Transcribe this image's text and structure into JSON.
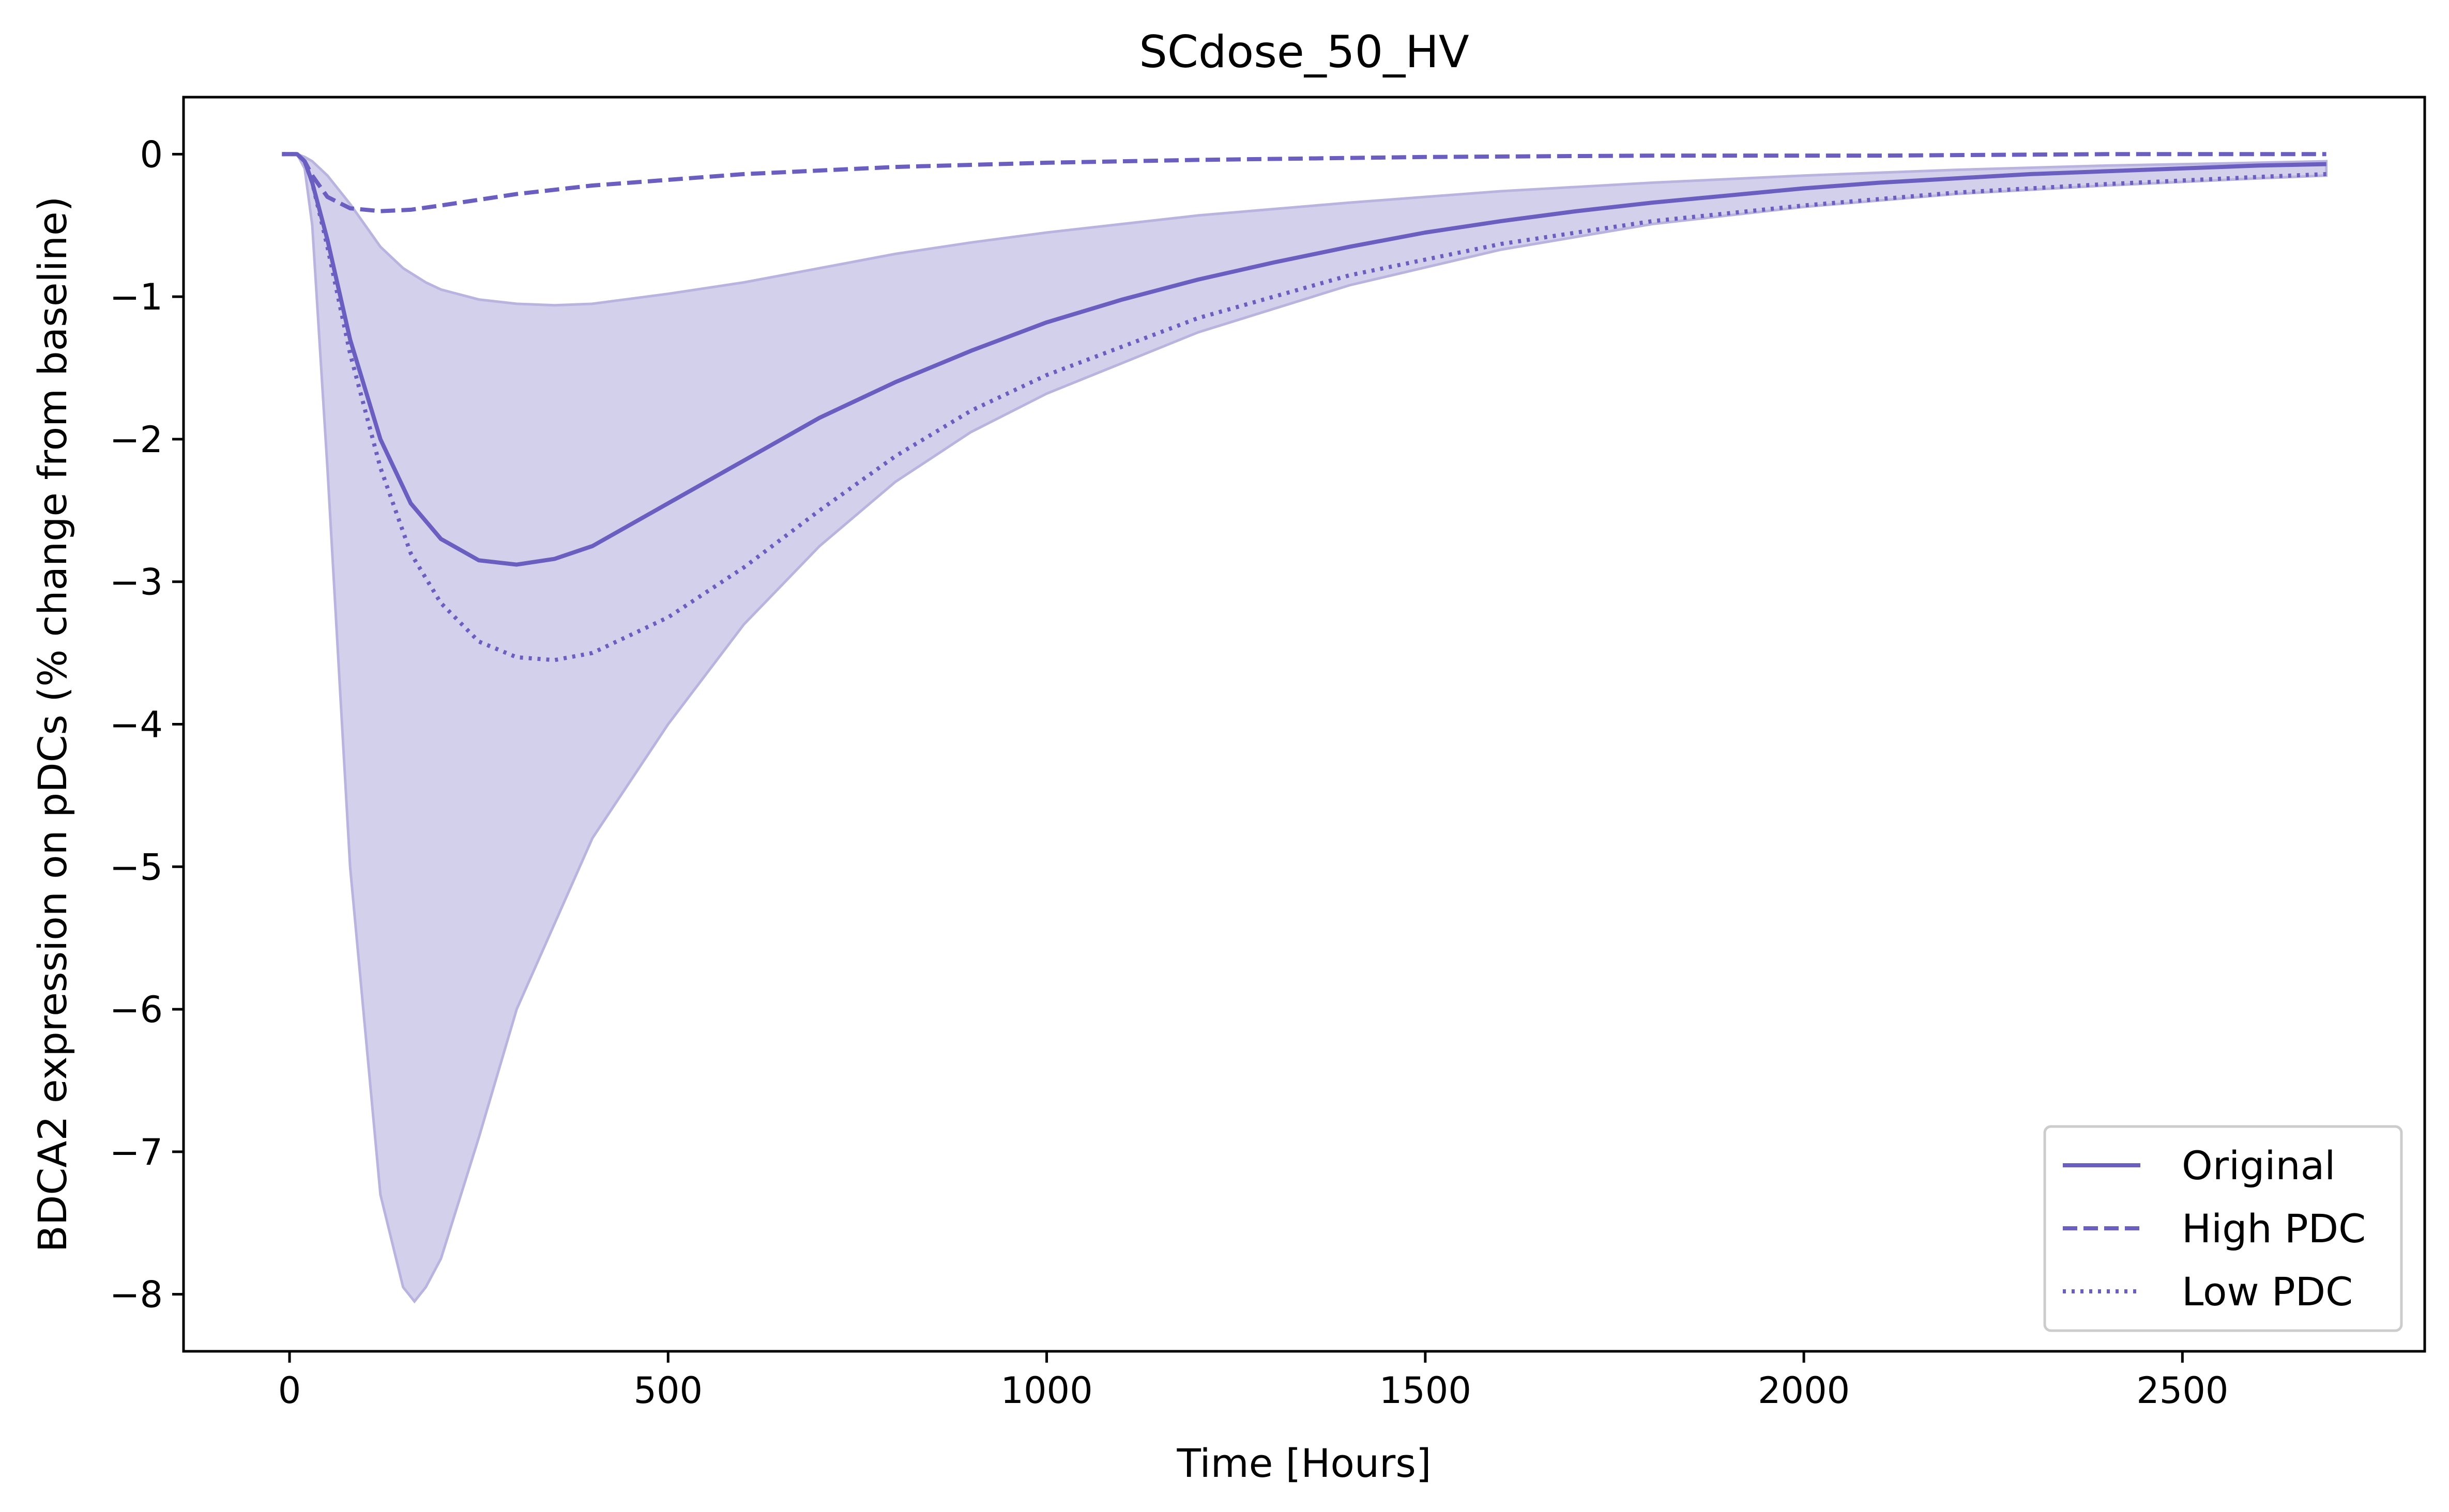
{
  "chart_data": {
    "type": "line",
    "title": "SCdose_50_HV",
    "xlabel": "Time [Hours]",
    "ylabel": "BDCA2 expression on pDCs (% change from baseline)",
    "xlim": [
      -140,
      2820
    ],
    "ylim": [
      -8.4,
      0.4
    ],
    "xticks": [
      0,
      500,
      1000,
      1500,
      2000,
      2500
    ],
    "xtick_labels": [
      "0",
      "500",
      "1000",
      "1500",
      "2000",
      "2500"
    ],
    "yticks": [
      0,
      -1,
      -2,
      -3,
      -4,
      -5,
      -6,
      -7,
      -8
    ],
    "ytick_labels": [
      "0",
      "−1",
      "−2",
      "−3",
      "−4",
      "−5",
      "−6",
      "−7",
      "−8"
    ],
    "grid": false,
    "legend_position": "lower-right",
    "colors": {
      "line": "#6a5fc1",
      "band_fill": "#d3d0eb",
      "band_edge": "#b9b3e0",
      "axes": "#000000"
    },
    "series": [
      {
        "name": "Original",
        "style": "solid",
        "x": [
          -10,
          0,
          10,
          20,
          30,
          50,
          80,
          120,
          160,
          200,
          250,
          300,
          350,
          400,
          500,
          600,
          700,
          800,
          900,
          1000,
          1100,
          1200,
          1300,
          1400,
          1500,
          1600,
          1700,
          1800,
          1900,
          2000,
          2100,
          2200,
          2300,
          2400,
          2500,
          2600,
          2690
        ],
        "y": [
          0,
          0,
          0,
          -0.05,
          -0.2,
          -0.6,
          -1.3,
          -2.0,
          -2.45,
          -2.7,
          -2.85,
          -2.88,
          -2.84,
          -2.75,
          -2.45,
          -2.15,
          -1.85,
          -1.6,
          -1.38,
          -1.18,
          -1.02,
          -0.88,
          -0.76,
          -0.65,
          -0.55,
          -0.47,
          -0.4,
          -0.34,
          -0.29,
          -0.24,
          -0.2,
          -0.17,
          -0.14,
          -0.12,
          -0.1,
          -0.08,
          -0.07
        ]
      },
      {
        "name": "High PDC",
        "style": "dashed",
        "x": [
          -10,
          0,
          10,
          20,
          30,
          50,
          80,
          120,
          160,
          200,
          300,
          400,
          500,
          600,
          800,
          1000,
          1200,
          1500,
          1800,
          2100,
          2400,
          2690
        ],
        "y": [
          0,
          0,
          0,
          -0.05,
          -0.15,
          -0.3,
          -0.38,
          -0.4,
          -0.39,
          -0.36,
          -0.28,
          -0.22,
          -0.18,
          -0.14,
          -0.09,
          -0.06,
          -0.04,
          -0.02,
          -0.01,
          -0.01,
          0,
          0
        ]
      },
      {
        "name": "Low PDC",
        "style": "dotted",
        "x": [
          -10,
          0,
          10,
          20,
          30,
          50,
          80,
          120,
          160,
          200,
          250,
          300,
          350,
          400,
          500,
          600,
          700,
          800,
          900,
          1000,
          1200,
          1400,
          1600,
          1800,
          2000,
          2200,
          2400,
          2600,
          2690
        ],
        "y": [
          0,
          0,
          0,
          -0.05,
          -0.2,
          -0.65,
          -1.4,
          -2.2,
          -2.8,
          -3.15,
          -3.42,
          -3.53,
          -3.55,
          -3.5,
          -3.25,
          -2.9,
          -2.5,
          -2.12,
          -1.8,
          -1.55,
          -1.15,
          -0.85,
          -0.63,
          -0.47,
          -0.36,
          -0.27,
          -0.21,
          -0.16,
          -0.14
        ]
      }
    ],
    "band": {
      "x": [
        -10,
        0,
        10,
        20,
        30,
        50,
        80,
        120,
        150,
        165,
        180,
        200,
        250,
        300,
        350,
        400,
        500,
        600,
        700,
        800,
        900,
        1000,
        1200,
        1400,
        1600,
        1800,
        2000,
        2200,
        2400,
        2600,
        2690
      ],
      "upper": [
        0,
        0,
        0,
        -0.02,
        -0.05,
        -0.15,
        -0.35,
        -0.65,
        -0.8,
        -0.85,
        -0.9,
        -0.95,
        -1.02,
        -1.05,
        -1.06,
        -1.05,
        -0.98,
        -0.9,
        -0.8,
        -0.7,
        -0.62,
        -0.55,
        -0.43,
        -0.34,
        -0.26,
        -0.2,
        -0.15,
        -0.11,
        -0.08,
        -0.06,
        -0.05
      ],
      "lower": [
        0,
        0,
        0,
        -0.1,
        -0.5,
        -2.2,
        -5.0,
        -7.3,
        -7.95,
        -8.05,
        -7.95,
        -7.75,
        -6.9,
        -6.0,
        -5.4,
        -4.8,
        -4.0,
        -3.3,
        -2.75,
        -2.3,
        -1.95,
        -1.68,
        -1.25,
        -0.92,
        -0.67,
        -0.49,
        -0.37,
        -0.28,
        -0.22,
        -0.17,
        -0.15
      ]
    }
  }
}
